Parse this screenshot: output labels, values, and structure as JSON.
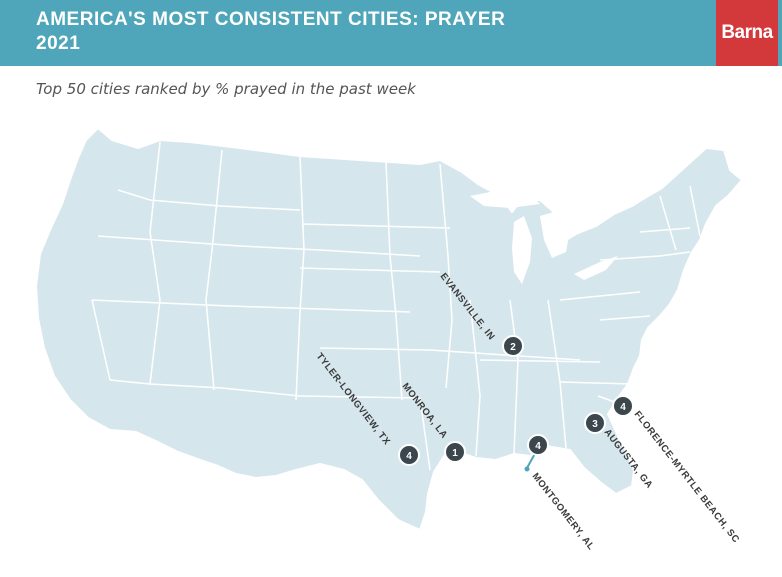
{
  "header": {
    "title": "AMERICA'S MOST CONSISTENT CITIES: PRAYER",
    "year": "2021",
    "logo": "Barna"
  },
  "subtitle": "Top 50 cities ranked by % prayed in the past week",
  "colors": {
    "header_bg": "#4fa5b9",
    "logo_bg": "#d3393b",
    "land": "#d6e6ed",
    "border": "#ffffff",
    "marker": "#3b464d",
    "pointer": "#4fa5b9"
  },
  "markers": [
    {
      "city": "EVANSVILLE, IN",
      "rank": "2"
    },
    {
      "city": "MONROA, LA",
      "rank": "1"
    },
    {
      "city": "TYLER-LONGVIEW, TX",
      "rank": "4"
    },
    {
      "city": "MONTGOMERY, AL",
      "rank": "4"
    },
    {
      "city": "AUGUSTA, GA",
      "rank": "3"
    },
    {
      "city": "FLORENCE-MYRTLE BEACH, SC",
      "rank": "4"
    }
  ]
}
